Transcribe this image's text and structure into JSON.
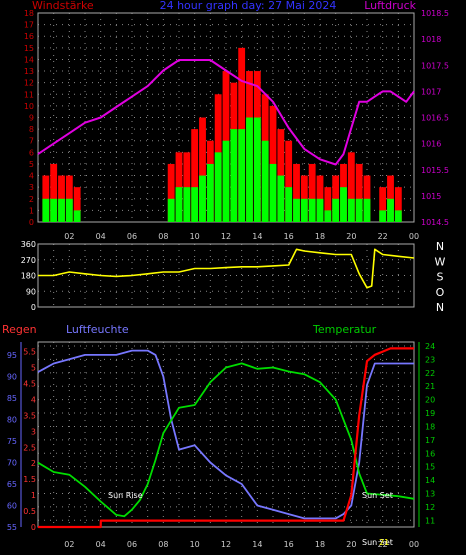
{
  "top_titles": {
    "left": "Windstärke",
    "center": "24 hour graph day: 27 Mai 2024",
    "right": "Luftdruck"
  },
  "x_ticks": [
    "02",
    "04",
    "06",
    "08",
    "10",
    "12",
    "14",
    "16",
    "18",
    "20",
    "22",
    "00"
  ],
  "bottom_titles": {
    "regen": "Regen",
    "humidity": "Luftfeuchte",
    "temperature": "Temperatur"
  },
  "bottom_annotations": {
    "sunrise": "Sun Rise",
    "sunset": "Sun Set",
    "sunset_time": "Sun Set",
    "sunset_marker": "21"
  },
  "colors": {
    "wind_gust": "#ff0000",
    "wind_avg": "#00ff00",
    "pressure": "#e000e0",
    "direction": "#ffff00",
    "humidity": "#7777ff",
    "temperature": "#00dd00",
    "rain": "#ff0000",
    "wind_axis": "#cc0000",
    "pressure_axis": "#cc00cc",
    "humidity_axis": "#6666ff",
    "rain_axis": "#ff3333",
    "temp_axis": "#00cc00",
    "grid": "#888888"
  },
  "chart_data": [
    {
      "type": "bar",
      "title": "24 hour graph day: 27 Mai 2024",
      "ylabel": "Windstärke",
      "y2label": "Luftdruck",
      "ylim": [
        0,
        18
      ],
      "y_ticks": [
        0,
        1,
        2,
        3,
        4,
        5,
        6,
        7,
        8,
        9,
        10,
        11,
        12,
        13,
        14,
        15,
        16,
        17,
        18
      ],
      "y2lim": [
        1014.5,
        1018.5
      ],
      "y2_ticks": [
        "1014.5",
        "1015",
        "1015.5",
        "1016",
        "1016.5",
        "1017",
        "1017.5",
        "1018",
        "1018.5"
      ],
      "x_hours": [
        0,
        24
      ],
      "series": [
        {
          "name": "Windstärke (Böen)",
          "x": [
            0.5,
            1.0,
            1.5,
            2.0,
            2.5,
            8.5,
            9.0,
            9.5,
            10.0,
            10.5,
            11.0,
            11.5,
            12.0,
            12.5,
            13.0,
            13.5,
            14.0,
            14.5,
            15.0,
            15.5,
            16.0,
            16.5,
            17.0,
            17.5,
            18.0,
            18.5,
            19.0,
            19.5,
            20.0,
            20.5,
            21.0,
            22.0,
            22.5,
            23.0
          ],
          "values": [
            4,
            5,
            4,
            4,
            3,
            5,
            6,
            6,
            8,
            9,
            7,
            11,
            13,
            12,
            15,
            13,
            13,
            11,
            10,
            8,
            7,
            5,
            4,
            5,
            4,
            3,
            4,
            5,
            6,
            5,
            4,
            3,
            4,
            3
          ]
        },
        {
          "name": "Windstärke (Mittel)",
          "x": [
            0.5,
            1.0,
            1.5,
            2.0,
            2.5,
            8.5,
            9.0,
            9.5,
            10.0,
            10.5,
            11.0,
            11.5,
            12.0,
            12.5,
            13.0,
            13.5,
            14.0,
            14.5,
            15.0,
            15.5,
            16.0,
            16.5,
            17.0,
            17.5,
            18.0,
            18.5,
            19.0,
            19.5,
            20.0,
            20.5,
            21.0,
            22.0,
            22.5,
            23.0
          ],
          "values": [
            2,
            2,
            2,
            2,
            1,
            2,
            3,
            3,
            3,
            4,
            5,
            6,
            7,
            8,
            8,
            9,
            9,
            7,
            5,
            4,
            3,
            2,
            2,
            2,
            2,
            1,
            2,
            3,
            2,
            2,
            2,
            1,
            2,
            1
          ]
        },
        {
          "name": "Luftdruck",
          "x": [
            0,
            1,
            2,
            3,
            4,
            5,
            6,
            7,
            8,
            9,
            10,
            11,
            12,
            13,
            14,
            15,
            16,
            17,
            18,
            19,
            19.5,
            20,
            20.5,
            21,
            21.5,
            22,
            22.5,
            23,
            23.5,
            24
          ],
          "values": [
            1015.8,
            1016.0,
            1016.2,
            1016.4,
            1016.5,
            1016.7,
            1016.9,
            1017.1,
            1017.4,
            1017.6,
            1017.6,
            1017.6,
            1017.4,
            1017.2,
            1017.1,
            1016.8,
            1016.3,
            1015.9,
            1015.7,
            1015.6,
            1015.8,
            1016.3,
            1016.8,
            1016.8,
            1016.9,
            1017.0,
            1017.0,
            1016.9,
            1016.8,
            1017.0
          ]
        }
      ]
    },
    {
      "type": "line",
      "ylabel": "N W S O N",
      "ylim": [
        0,
        360
      ],
      "y_ticks": [
        0,
        90,
        180,
        270,
        360
      ],
      "y2_labels": [
        "N",
        "W",
        "S",
        "O",
        "N"
      ],
      "series": [
        {
          "name": "Windrichtung",
          "x": [
            0,
            1,
            2,
            3,
            4,
            5,
            6,
            7,
            8,
            9,
            10,
            11,
            12,
            13,
            14,
            15,
            16,
            16.5,
            17,
            18,
            19,
            20,
            20.5,
            21,
            21.3,
            21.5,
            22,
            23,
            24
          ],
          "values": [
            180,
            180,
            200,
            190,
            180,
            175,
            180,
            190,
            200,
            200,
            220,
            220,
            225,
            230,
            230,
            235,
            240,
            330,
            320,
            310,
            300,
            300,
            190,
            110,
            120,
            330,
            300,
            290,
            280
          ]
        }
      ]
    },
    {
      "type": "line",
      "title": "",
      "y_left_label": "Luftfeuchte",
      "y_left_ticks": [
        "55",
        "60",
        "65",
        "70",
        "75",
        "80",
        "85",
        "90",
        "95"
      ],
      "y_left_lim": [
        55,
        98
      ],
      "y_regen_label": "Regen",
      "y_regen_ticks": [
        "0",
        "0.5",
        "1",
        "1.5",
        "2",
        "2.5",
        "3",
        "3.5",
        "4",
        "4.5",
        "5",
        "5.5"
      ],
      "y_regen_lim": [
        0,
        5.8
      ],
      "y_right_label": "Temperatur",
      "y_right_ticks": [
        "11",
        "12",
        "13",
        "14",
        "15",
        "16",
        "17",
        "18",
        "19",
        "20",
        "21",
        "22",
        "23",
        "24"
      ],
      "y_right_lim": [
        10.5,
        24.3
      ],
      "series": [
        {
          "name": "Luftfeuchte",
          "x": [
            0,
            0.5,
            1,
            2,
            3,
            4,
            5,
            6,
            6.5,
            7,
            7.5,
            8,
            8.5,
            9,
            10,
            11,
            12,
            13,
            14,
            15,
            16,
            17,
            18,
            19,
            19.5,
            20,
            20.5,
            21,
            21.5,
            22,
            23,
            24
          ],
          "values": [
            91,
            92,
            93,
            94,
            95,
            95,
            95,
            96,
            96,
            96,
            95,
            90,
            80,
            73,
            74,
            70,
            67,
            65,
            60,
            59,
            58,
            57,
            57,
            57,
            58,
            60,
            70,
            88,
            93,
            93,
            93,
            93
          ]
        },
        {
          "name": "Temperatur",
          "x": [
            0,
            1,
            2,
            3,
            4,
            5,
            5.5,
            6,
            6.5,
            7,
            7.5,
            8,
            9,
            10,
            11,
            12,
            13,
            14,
            15,
            16,
            17,
            18,
            19,
            20,
            20.5,
            21,
            22,
            23,
            24
          ],
          "values": [
            15.3,
            14.6,
            14.4,
            13.5,
            12.4,
            11.4,
            11.3,
            11.8,
            12.5,
            13.7,
            15.5,
            17.5,
            19.4,
            19.6,
            21.3,
            22.4,
            22.7,
            22.3,
            22.4,
            22.1,
            21.9,
            21.3,
            20.0,
            17.0,
            14.5,
            13.0,
            12.9,
            12.8,
            12.6
          ]
        },
        {
          "name": "Regen",
          "x": [
            0,
            2,
            4,
            4.01,
            8,
            12,
            16,
            19.5,
            20,
            20.5,
            21,
            21.5,
            22,
            22.5,
            23,
            24
          ],
          "values": [
            0,
            0,
            0,
            0.2,
            0.2,
            0.2,
            0.2,
            0.2,
            1.0,
            3.5,
            5.2,
            5.4,
            5.5,
            5.6,
            5.6,
            5.6
          ]
        }
      ]
    }
  ]
}
